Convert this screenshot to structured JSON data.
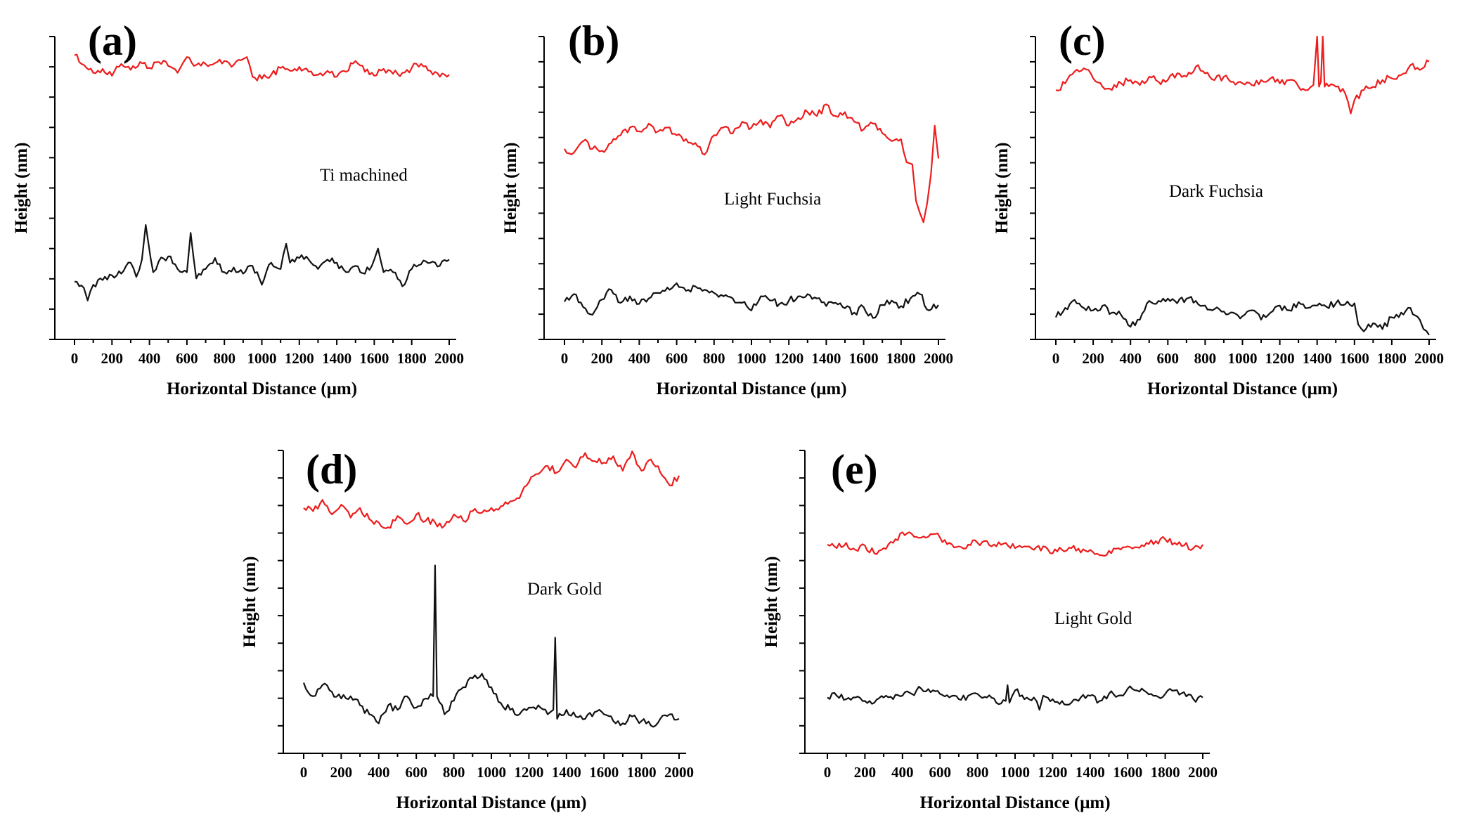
{
  "figure": {
    "background": "#ffffff"
  },
  "colors": {
    "upper_series": "#ee1c1c",
    "lower_series": "#111111"
  },
  "chart_data": [
    {
      "panel": "(a)",
      "type": "line",
      "annotation": "Ti machined",
      "xlabel": "Horizontal Distance (μm)",
      "ylabel": "Height (nm)",
      "xlim": [
        0,
        2000
      ],
      "xticks": [
        "0",
        "200",
        "400",
        "600",
        "800",
        "1000",
        "1200",
        "1400",
        "1600",
        "1800",
        "2000"
      ],
      "ylim": [
        0,
        100
      ],
      "y_ticks_count": 10,
      "y_values_shown": false,
      "series": [
        {
          "name": "upper profile",
          "color": "red",
          "x": [
            0,
            50,
            100,
            150,
            200,
            250,
            300,
            350,
            400,
            450,
            500,
            550,
            600,
            650,
            700,
            750,
            800,
            850,
            900,
            920,
            950,
            1000,
            1050,
            1100,
            1150,
            1200,
            1250,
            1300,
            1350,
            1400,
            1450,
            1500,
            1550,
            1600,
            1650,
            1700,
            1750,
            1800,
            1850,
            1900,
            1950,
            2000
          ],
          "y": [
            94,
            84,
            76,
            80,
            73,
            85,
            79,
            87,
            81,
            87,
            83,
            76,
            92,
            84,
            85,
            86,
            88,
            84,
            90,
            92,
            72,
            70,
            74,
            81,
            78,
            82,
            77,
            74,
            78,
            72,
            77,
            88,
            77,
            73,
            80,
            75,
            76,
            81,
            85,
            78,
            72,
            74
          ]
        },
        {
          "name": "lower profile",
          "color": "black",
          "x": [
            0,
            50,
            70,
            100,
            150,
            200,
            250,
            300,
            330,
            360,
            380,
            420,
            450,
            500,
            550,
            600,
            620,
            650,
            700,
            750,
            800,
            850,
            900,
            950,
            1000,
            1050,
            1100,
            1130,
            1150,
            1200,
            1250,
            1300,
            1350,
            1400,
            1450,
            1500,
            1550,
            1600,
            1620,
            1650,
            1700,
            1750,
            1800,
            1850,
            1900,
            1950,
            2000
          ],
          "y": [
            22,
            18,
            10,
            20,
            23,
            26,
            27,
            34,
            25,
            36,
            58,
            28,
            35,
            38,
            30,
            28,
            53,
            24,
            30,
            37,
            28,
            31,
            27,
            32,
            20,
            34,
            30,
            46,
            34,
            37,
            36,
            30,
            36,
            34,
            28,
            32,
            27,
            36,
            43,
            28,
            28,
            19,
            30,
            33,
            34,
            32,
            36
          ]
        }
      ]
    },
    {
      "panel": "(b)",
      "type": "line",
      "annotation": "Light Fuchsia",
      "xlabel": "Horizontal Distance (μm)",
      "ylabel": "Height (nm)",
      "xlim": [
        0,
        2000
      ],
      "xticks": [
        "0",
        "200",
        "400",
        "600",
        "800",
        "1000",
        "1200",
        "1400",
        "1600",
        "1800",
        "2000"
      ],
      "ylim": [
        0,
        100
      ],
      "y_ticks_count": 12,
      "y_values_shown": false,
      "series": [
        {
          "name": "upper profile",
          "color": "red",
          "x": [
            0,
            50,
            100,
            150,
            200,
            250,
            300,
            350,
            400,
            450,
            500,
            550,
            600,
            650,
            700,
            750,
            800,
            850,
            900,
            950,
            1000,
            1050,
            1100,
            1150,
            1200,
            1250,
            1300,
            1350,
            1400,
            1450,
            1500,
            1550,
            1600,
            1650,
            1700,
            1750,
            1800,
            1830,
            1860,
            1880,
            1900,
            1920,
            1940,
            1960,
            1980,
            2000
          ],
          "y": [
            63,
            61,
            67,
            63,
            62,
            66,
            70,
            74,
            72,
            76,
            72,
            74,
            70,
            68,
            66,
            60,
            70,
            74,
            71,
            77,
            74,
            78,
            74,
            80,
            75,
            79,
            82,
            80,
            86,
            80,
            82,
            77,
            73,
            76,
            71,
            67,
            68,
            56,
            55,
            36,
            30,
            25,
            35,
            50,
            75,
            58
          ]
        },
        {
          "name": "lower profile",
          "color": "black",
          "x": [
            0,
            50,
            100,
            150,
            200,
            250,
            300,
            350,
            400,
            450,
            500,
            550,
            600,
            650,
            700,
            750,
            800,
            850,
            900,
            950,
            1000,
            1050,
            1100,
            1150,
            1200,
            1250,
            1300,
            1350,
            1400,
            1450,
            1500,
            1550,
            1600,
            1650,
            1700,
            1750,
            1800,
            1850,
            1900,
            1950,
            2000
          ],
          "y": [
            23,
            30,
            18,
            11,
            25,
            34,
            22,
            28,
            21,
            26,
            31,
            36,
            40,
            33,
            37,
            34,
            31,
            28,
            26,
            22,
            15,
            28,
            24,
            21,
            24,
            28,
            30,
            26,
            19,
            22,
            17,
            13,
            18,
            8,
            20,
            24,
            19,
            26,
            30,
            15,
            20
          ]
        }
      ]
    },
    {
      "panel": "(c)",
      "type": "line",
      "annotation": "Dark Fuchsia",
      "xlabel": "Horizontal Distance (μm)",
      "ylabel": "Height (nm)",
      "xlim": [
        0,
        2000
      ],
      "xticks": [
        "0",
        "200",
        "400",
        "600",
        "800",
        "1000",
        "1200",
        "1400",
        "1600",
        "1800",
        "2000"
      ],
      "ylim": [
        0,
        100
      ],
      "y_ticks_count": 12,
      "y_values_shown": false,
      "series": [
        {
          "name": "upper profile",
          "color": "red",
          "x": [
            0,
            50,
            100,
            150,
            200,
            250,
            300,
            350,
            400,
            450,
            500,
            550,
            600,
            650,
            700,
            750,
            800,
            850,
            900,
            950,
            1000,
            1050,
            1100,
            1150,
            1200,
            1250,
            1300,
            1350,
            1380,
            1400,
            1410,
            1420,
            1430,
            1440,
            1450,
            1500,
            1550,
            1580,
            1600,
            1650,
            1700,
            1750,
            1800,
            1850,
            1900,
            1950,
            2000
          ],
          "y": [
            68,
            72,
            79,
            81,
            75,
            70,
            68,
            72,
            74,
            71,
            76,
            73,
            74,
            78,
            76,
            82,
            78,
            74,
            76,
            73,
            72,
            71,
            74,
            75,
            72,
            74,
            70,
            68,
            71,
            100,
            70,
            73,
            100,
            70,
            72,
            70,
            66,
            54,
            62,
            68,
            70,
            74,
            75,
            77,
            83,
            80,
            85
          ]
        },
        {
          "name": "lower profile",
          "color": "black",
          "x": [
            0,
            50,
            100,
            150,
            200,
            250,
            300,
            350,
            400,
            450,
            500,
            550,
            600,
            650,
            700,
            750,
            800,
            850,
            900,
            950,
            1000,
            1050,
            1100,
            1150,
            1200,
            1250,
            1300,
            1350,
            1400,
            1450,
            1500,
            1550,
            1600,
            1620,
            1650,
            1700,
            1750,
            1800,
            1850,
            1900,
            1950,
            1970,
            2000
          ],
          "y": [
            20,
            28,
            35,
            28,
            26,
            30,
            24,
            22,
            12,
            18,
            34,
            34,
            36,
            32,
            36,
            34,
            30,
            27,
            25,
            24,
            21,
            26,
            18,
            24,
            30,
            26,
            33,
            28,
            30,
            29,
            32,
            31,
            32,
            14,
            8,
            15,
            10,
            20,
            24,
            28,
            18,
            10,
            5
          ]
        }
      ]
    },
    {
      "panel": "(d)",
      "type": "line",
      "annotation": "Dark Gold",
      "xlabel": "Horizontal Distance (μm)",
      "ylabel": "Height (nm)",
      "xlim": [
        0,
        2000
      ],
      "xticks": [
        "0",
        "200",
        "400",
        "600",
        "800",
        "1000",
        "1200",
        "1400",
        "1600",
        "1800",
        "2000"
      ],
      "ylim": [
        0,
        100
      ],
      "y_ticks_count": 11,
      "y_values_shown": false,
      "series": [
        {
          "name": "upper profile",
          "color": "red",
          "x": [
            0,
            50,
            100,
            150,
            200,
            250,
            300,
            350,
            400,
            450,
            500,
            550,
            600,
            650,
            700,
            750,
            800,
            850,
            900,
            950,
            1000,
            1050,
            1100,
            1150,
            1200,
            1250,
            1300,
            1350,
            1400,
            1450,
            1500,
            1550,
            1600,
            1650,
            1700,
            1750,
            1800,
            1850,
            1900,
            1950,
            2000
          ],
          "y": [
            64,
            62,
            69,
            60,
            66,
            58,
            64,
            57,
            55,
            52,
            59,
            54,
            60,
            56,
            55,
            53,
            60,
            56,
            62,
            61,
            64,
            65,
            68,
            70,
            80,
            85,
            90,
            86,
            94,
            89,
            98,
            93,
            92,
            96,
            87,
            99,
            87,
            94,
            86,
            78,
            84
          ]
        },
        {
          "name": "lower profile",
          "color": "black",
          "x": [
            0,
            50,
            100,
            150,
            200,
            250,
            300,
            350,
            400,
            450,
            500,
            550,
            600,
            650,
            690,
            700,
            710,
            750,
            800,
            850,
            900,
            950,
            1000,
            1050,
            1100,
            1150,
            1200,
            1250,
            1300,
            1330,
            1340,
            1350,
            1400,
            1450,
            1500,
            1550,
            1600,
            1650,
            1700,
            1750,
            1800,
            1850,
            1900,
            1950,
            2000
          ],
          "y": [
            26,
            20,
            25,
            22,
            19,
            20,
            16,
            12,
            8,
            16,
            14,
            20,
            15,
            19,
            20,
            78,
            20,
            12,
            18,
            24,
            28,
            30,
            24,
            17,
            14,
            12,
            15,
            16,
            12,
            14,
            46,
            10,
            14,
            11,
            10,
            13,
            12,
            9,
            8,
            11,
            9,
            7,
            10,
            12,
            10
          ]
        }
      ]
    },
    {
      "panel": "(e)",
      "type": "line",
      "annotation": "Light Gold",
      "xlabel": "Horizontal Distance (μm)",
      "ylabel": "Height (nm)",
      "xlim": [
        0,
        2000
      ],
      "xticks": [
        "0",
        "200",
        "400",
        "600",
        "800",
        "1000",
        "1200",
        "1400",
        "1600",
        "1800",
        "2000"
      ],
      "ylim": [
        0,
        100
      ],
      "y_ticks_count": 11,
      "y_values_shown": false,
      "series": [
        {
          "name": "upper profile",
          "color": "red",
          "x": [
            0,
            50,
            100,
            150,
            200,
            250,
            300,
            350,
            400,
            450,
            500,
            550,
            600,
            650,
            700,
            750,
            800,
            850,
            900,
            950,
            1000,
            1050,
            1100,
            1150,
            1200,
            1250,
            1300,
            1350,
            1400,
            1450,
            1500,
            1550,
            1600,
            1650,
            1700,
            1750,
            1800,
            1850,
            1900,
            1950,
            2000
          ],
          "y": [
            64,
            60,
            66,
            58,
            63,
            54,
            60,
            66,
            78,
            76,
            72,
            76,
            72,
            66,
            62,
            64,
            66,
            68,
            62,
            66,
            60,
            62,
            58,
            62,
            54,
            58,
            60,
            55,
            58,
            52,
            57,
            60,
            62,
            61,
            66,
            68,
            70,
            66,
            63,
            60,
            64
          ]
        },
        {
          "name": "lower profile",
          "color": "black",
          "x": [
            0,
            50,
            100,
            150,
            200,
            250,
            300,
            350,
            400,
            450,
            500,
            550,
            600,
            650,
            700,
            750,
            800,
            850,
            900,
            950,
            960,
            970,
            1000,
            1050,
            1100,
            1130,
            1150,
            1200,
            1250,
            1300,
            1350,
            1400,
            1450,
            1500,
            1550,
            1600,
            1650,
            1700,
            1750,
            1800,
            1850,
            1900,
            1950,
            2000
          ],
          "y": [
            26,
            28,
            24,
            26,
            22,
            20,
            26,
            24,
            28,
            30,
            36,
            32,
            30,
            26,
            24,
            28,
            30,
            26,
            20,
            22,
            40,
            20,
            34,
            24,
            26,
            12,
            28,
            24,
            22,
            20,
            26,
            28,
            22,
            30,
            28,
            36,
            34,
            32,
            28,
            30,
            34,
            32,
            24,
            26
          ]
        }
      ]
    }
  ]
}
